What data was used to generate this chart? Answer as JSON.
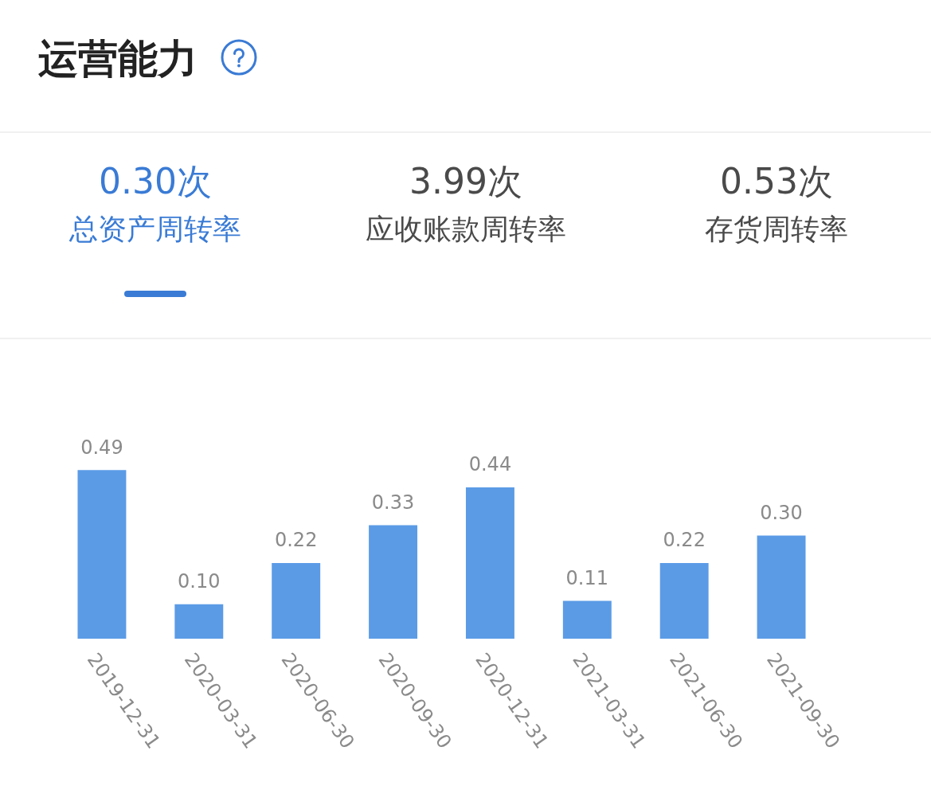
{
  "chart_data": {
    "type": "bar",
    "title": "运营能力",
    "annotations": [
      "0.30次",
      "总资产周转率",
      "3.99次",
      "应收账款周转率",
      "0.53次",
      "存货周转率"
    ],
    "categories": [
      "2019-12-31",
      "2020-03-31",
      "2020-06-30",
      "2020-09-30",
      "2020-12-31",
      "2021-03-31",
      "2021-06-30",
      "2021-09-30"
    ],
    "values": [
      0.49,
      0.1,
      0.22,
      0.33,
      0.44,
      0.11,
      0.22,
      0.3
    ],
    "value_labels": [
      "0.49",
      "0.10",
      "0.22",
      "0.33",
      "0.44",
      "0.11",
      "0.22",
      "0.30"
    ],
    "color": "#5b9be6",
    "tick_labels": "x"
  }
}
